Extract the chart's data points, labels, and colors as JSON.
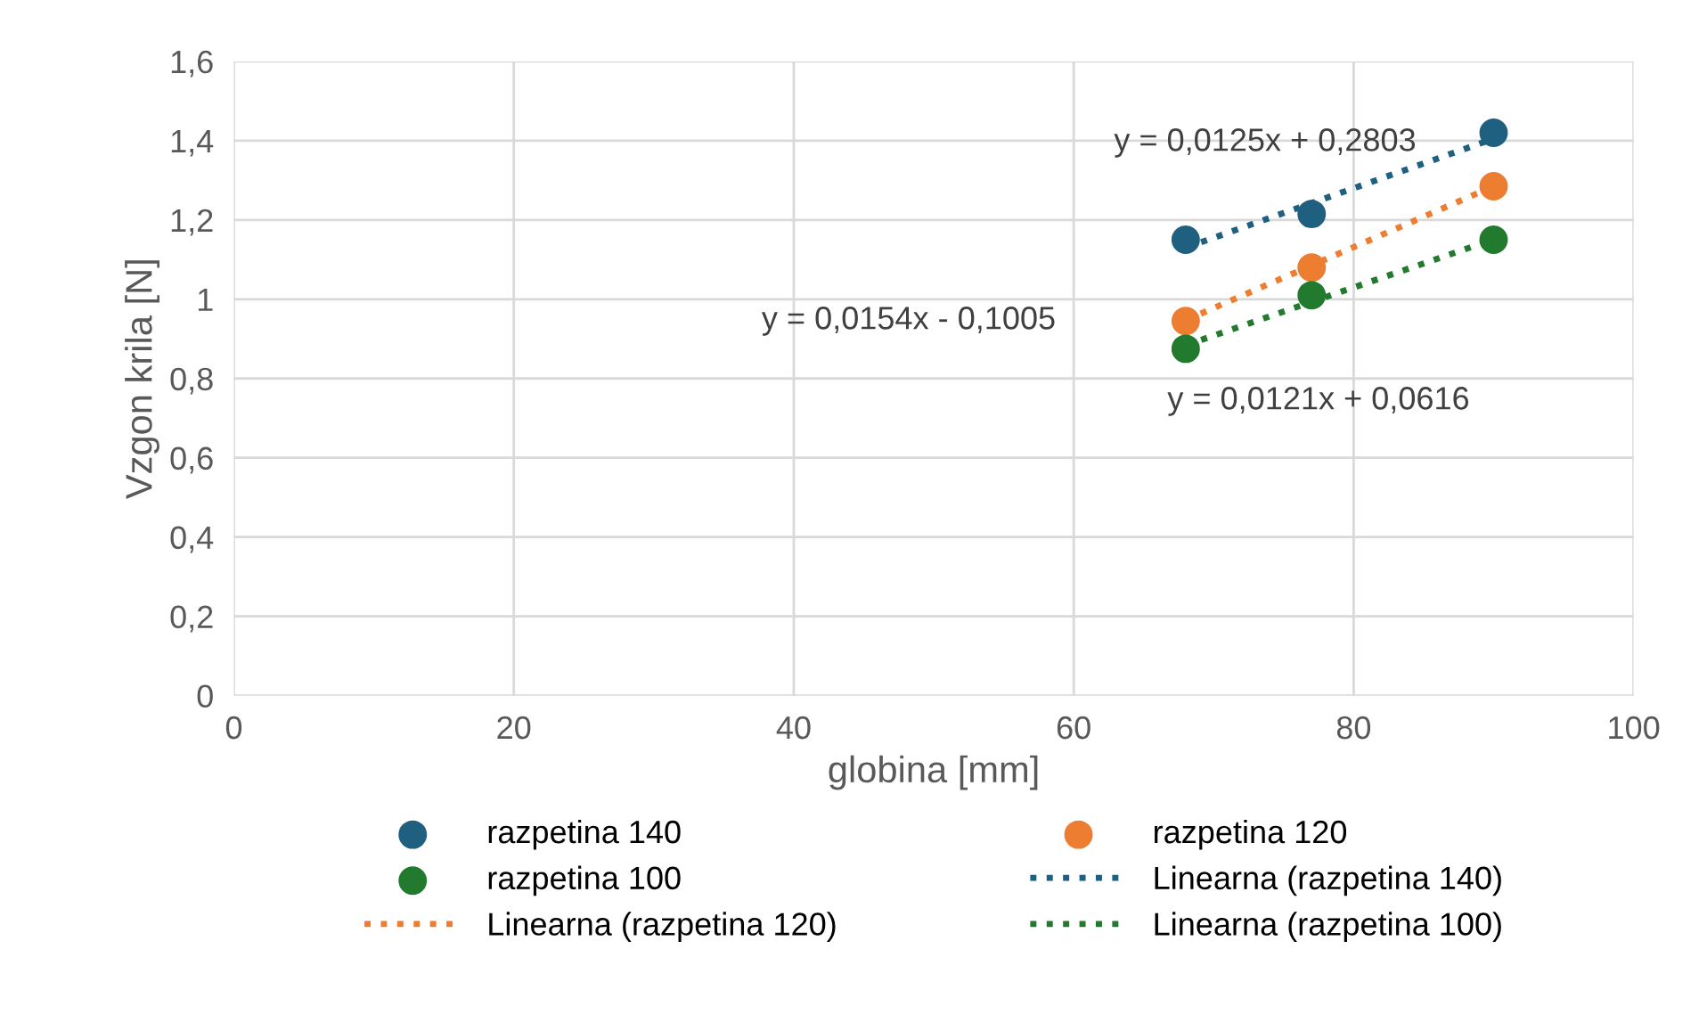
{
  "chart_data": {
    "type": "scatter",
    "xlabel": "globina [mm]",
    "ylabel": "Vzgon krila [N]",
    "xlim": [
      0,
      100
    ],
    "xticks": [
      0,
      20,
      40,
      60,
      80,
      100
    ],
    "ylim": [
      0,
      1.6
    ],
    "yticks": [
      0,
      {
        "value": 0.2,
        "label": "0,2"
      },
      {
        "value": 0.4,
        "label": "0,4"
      },
      {
        "value": 0.6,
        "label": "0,6"
      },
      {
        "value": 0.8,
        "label": "0,8"
      },
      1,
      {
        "value": 1.2,
        "label": "1,2"
      },
      {
        "value": 1.4,
        "label": "1,4"
      },
      {
        "value": 1.6,
        "label": "1,6"
      }
    ],
    "grid": true,
    "legend": "bottom",
    "marker": "circle",
    "series": [
      {
        "name": "razpetina 140",
        "color": "#1f5f7f",
        "x": [
          68,
          77,
          90
        ],
        "values": [
          1.15,
          1.215,
          1.42
        ]
      },
      {
        "name": "razpetina 120",
        "color": "#ed7d31",
        "x": [
          68,
          77,
          90
        ],
        "values": [
          0.945,
          1.08,
          1.285
        ]
      },
      {
        "name": "razpetina 100",
        "color": "#217a2e",
        "x": [
          68,
          77,
          90
        ],
        "values": [
          0.875,
          1.01,
          1.15
        ]
      },
      {
        "name": "Linearna (razpetina 140)",
        "type": "line",
        "marker": "none",
        "line_style": "dotted",
        "color": "#1f5f7f",
        "x": [
          68,
          90
        ],
        "values": [
          1.13,
          1.405
        ]
      },
      {
        "name": "Linearna (razpetina 120)",
        "type": "line",
        "marker": "none",
        "line_style": "dotted",
        "color": "#ed7d31",
        "x": [
          68,
          90
        ],
        "values": [
          0.947,
          1.285
        ]
      },
      {
        "name": "Linearna (razpetina 100)",
        "type": "line",
        "marker": "none",
        "line_style": "dotted",
        "color": "#217a2e",
        "x": [
          68,
          90
        ],
        "values": [
          0.884,
          1.151
        ]
      }
    ],
    "annotations": [
      "y = 0,0125x + 0,2803",
      "y = 0,0154x - 0,1005",
      "y = 0,0121x + 0,0616"
    ]
  }
}
